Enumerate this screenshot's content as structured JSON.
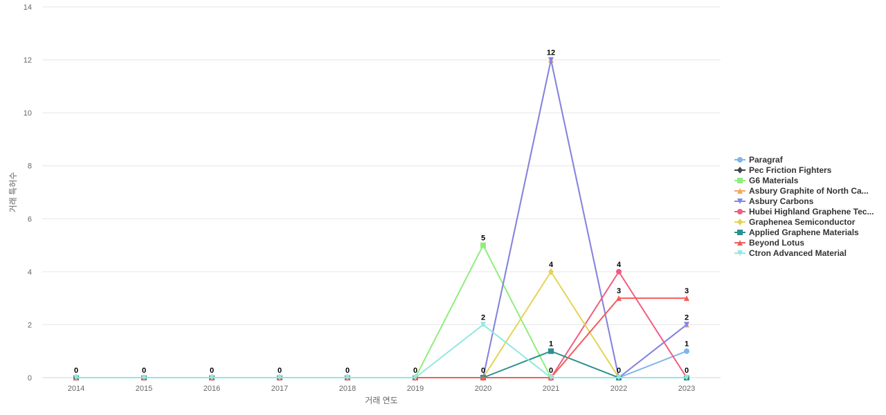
{
  "chart_data": {
    "type": "line",
    "categories": [
      "2014",
      "2015",
      "2016",
      "2017",
      "2018",
      "2019",
      "2020",
      "2021",
      "2022",
      "2023"
    ],
    "xlabel": "거래 연도",
    "ylabel": "거래 특허수",
    "ylim": [
      0,
      14
    ],
    "yticks": [
      "0",
      "2",
      "4",
      "6",
      "8",
      "10",
      "12",
      "14"
    ],
    "grid": true,
    "legend_position": "right",
    "series": [
      {
        "name": "Paragraf",
        "color": "#7cb5ec",
        "marker": "circle",
        "values": [
          0,
          0,
          0,
          0,
          0,
          0,
          0,
          0,
          0,
          1
        ]
      },
      {
        "name": "Pec Friction Fighters",
        "color": "#434348",
        "marker": "diamond",
        "values": [
          0,
          0,
          0,
          0,
          0,
          0,
          0,
          0,
          0,
          0
        ]
      },
      {
        "name": "G6 Materials",
        "color": "#90ed7d",
        "marker": "square",
        "values": [
          0,
          0,
          0,
          0,
          0,
          0,
          5,
          0,
          0,
          0
        ]
      },
      {
        "name": "Asbury Graphite of North Ca...",
        "color": "#f7a35c",
        "marker": "triangle",
        "values": [
          0,
          0,
          0,
          0,
          0,
          0,
          0,
          12,
          0,
          2
        ]
      },
      {
        "name": "Asbury Carbons",
        "color": "#8085e9",
        "marker": "triangle-down",
        "values": [
          0,
          0,
          0,
          0,
          0,
          0,
          0,
          12,
          0,
          2
        ]
      },
      {
        "name": "Hubei Highland Graphene Tec...",
        "color": "#f15c80",
        "marker": "circle",
        "values": [
          0,
          0,
          0,
          0,
          0,
          0,
          0,
          0,
          4,
          0
        ]
      },
      {
        "name": "Graphenea Semiconductor",
        "color": "#e4d354",
        "marker": "diamond",
        "values": [
          0,
          0,
          0,
          0,
          0,
          0,
          0,
          4,
          0,
          0
        ]
      },
      {
        "name": "Applied Graphene Materials",
        "color": "#2b908f",
        "marker": "square",
        "values": [
          0,
          0,
          0,
          0,
          0,
          0,
          0,
          1,
          0,
          0
        ]
      },
      {
        "name": "Beyond Lotus",
        "color": "#f45b5b",
        "marker": "triangle",
        "values": [
          0,
          0,
          0,
          0,
          0,
          0,
          0,
          0,
          3,
          3
        ]
      },
      {
        "name": "Ctron Advanced Material",
        "color": "#91e8e1",
        "marker": "triangle-down",
        "values": [
          0,
          0,
          0,
          0,
          0,
          0,
          2,
          0,
          0,
          0
        ]
      }
    ],
    "data_labels": [
      {
        "x": "2014",
        "text": "0"
      },
      {
        "x": "2015",
        "text": "0"
      },
      {
        "x": "2016",
        "text": "0"
      },
      {
        "x": "2017",
        "text": "0"
      },
      {
        "x": "2018",
        "text": "0"
      },
      {
        "x": "2019",
        "text": "0"
      },
      {
        "x": "2020",
        "text": "0",
        "value": 0
      },
      {
        "x": "2020",
        "text": "2",
        "value": 2
      },
      {
        "x": "2020",
        "text": "5",
        "value": 5
      },
      {
        "x": "2021",
        "text": "0",
        "value": 0
      },
      {
        "x": "2021",
        "text": "1",
        "value": 1
      },
      {
        "x": "2021",
        "text": "4",
        "value": 4
      },
      {
        "x": "2021",
        "text": "12",
        "value": 12
      },
      {
        "x": "2022",
        "text": "0",
        "value": 0
      },
      {
        "x": "2022",
        "text": "3",
        "value": 3
      },
      {
        "x": "2022",
        "text": "4",
        "value": 4
      },
      {
        "x": "2023",
        "text": "0",
        "value": 0
      },
      {
        "x": "2023",
        "text": "1",
        "value": 1
      },
      {
        "x": "2023",
        "text": "2",
        "value": 2
      },
      {
        "x": "2023",
        "text": "3",
        "value": 3
      }
    ]
  }
}
